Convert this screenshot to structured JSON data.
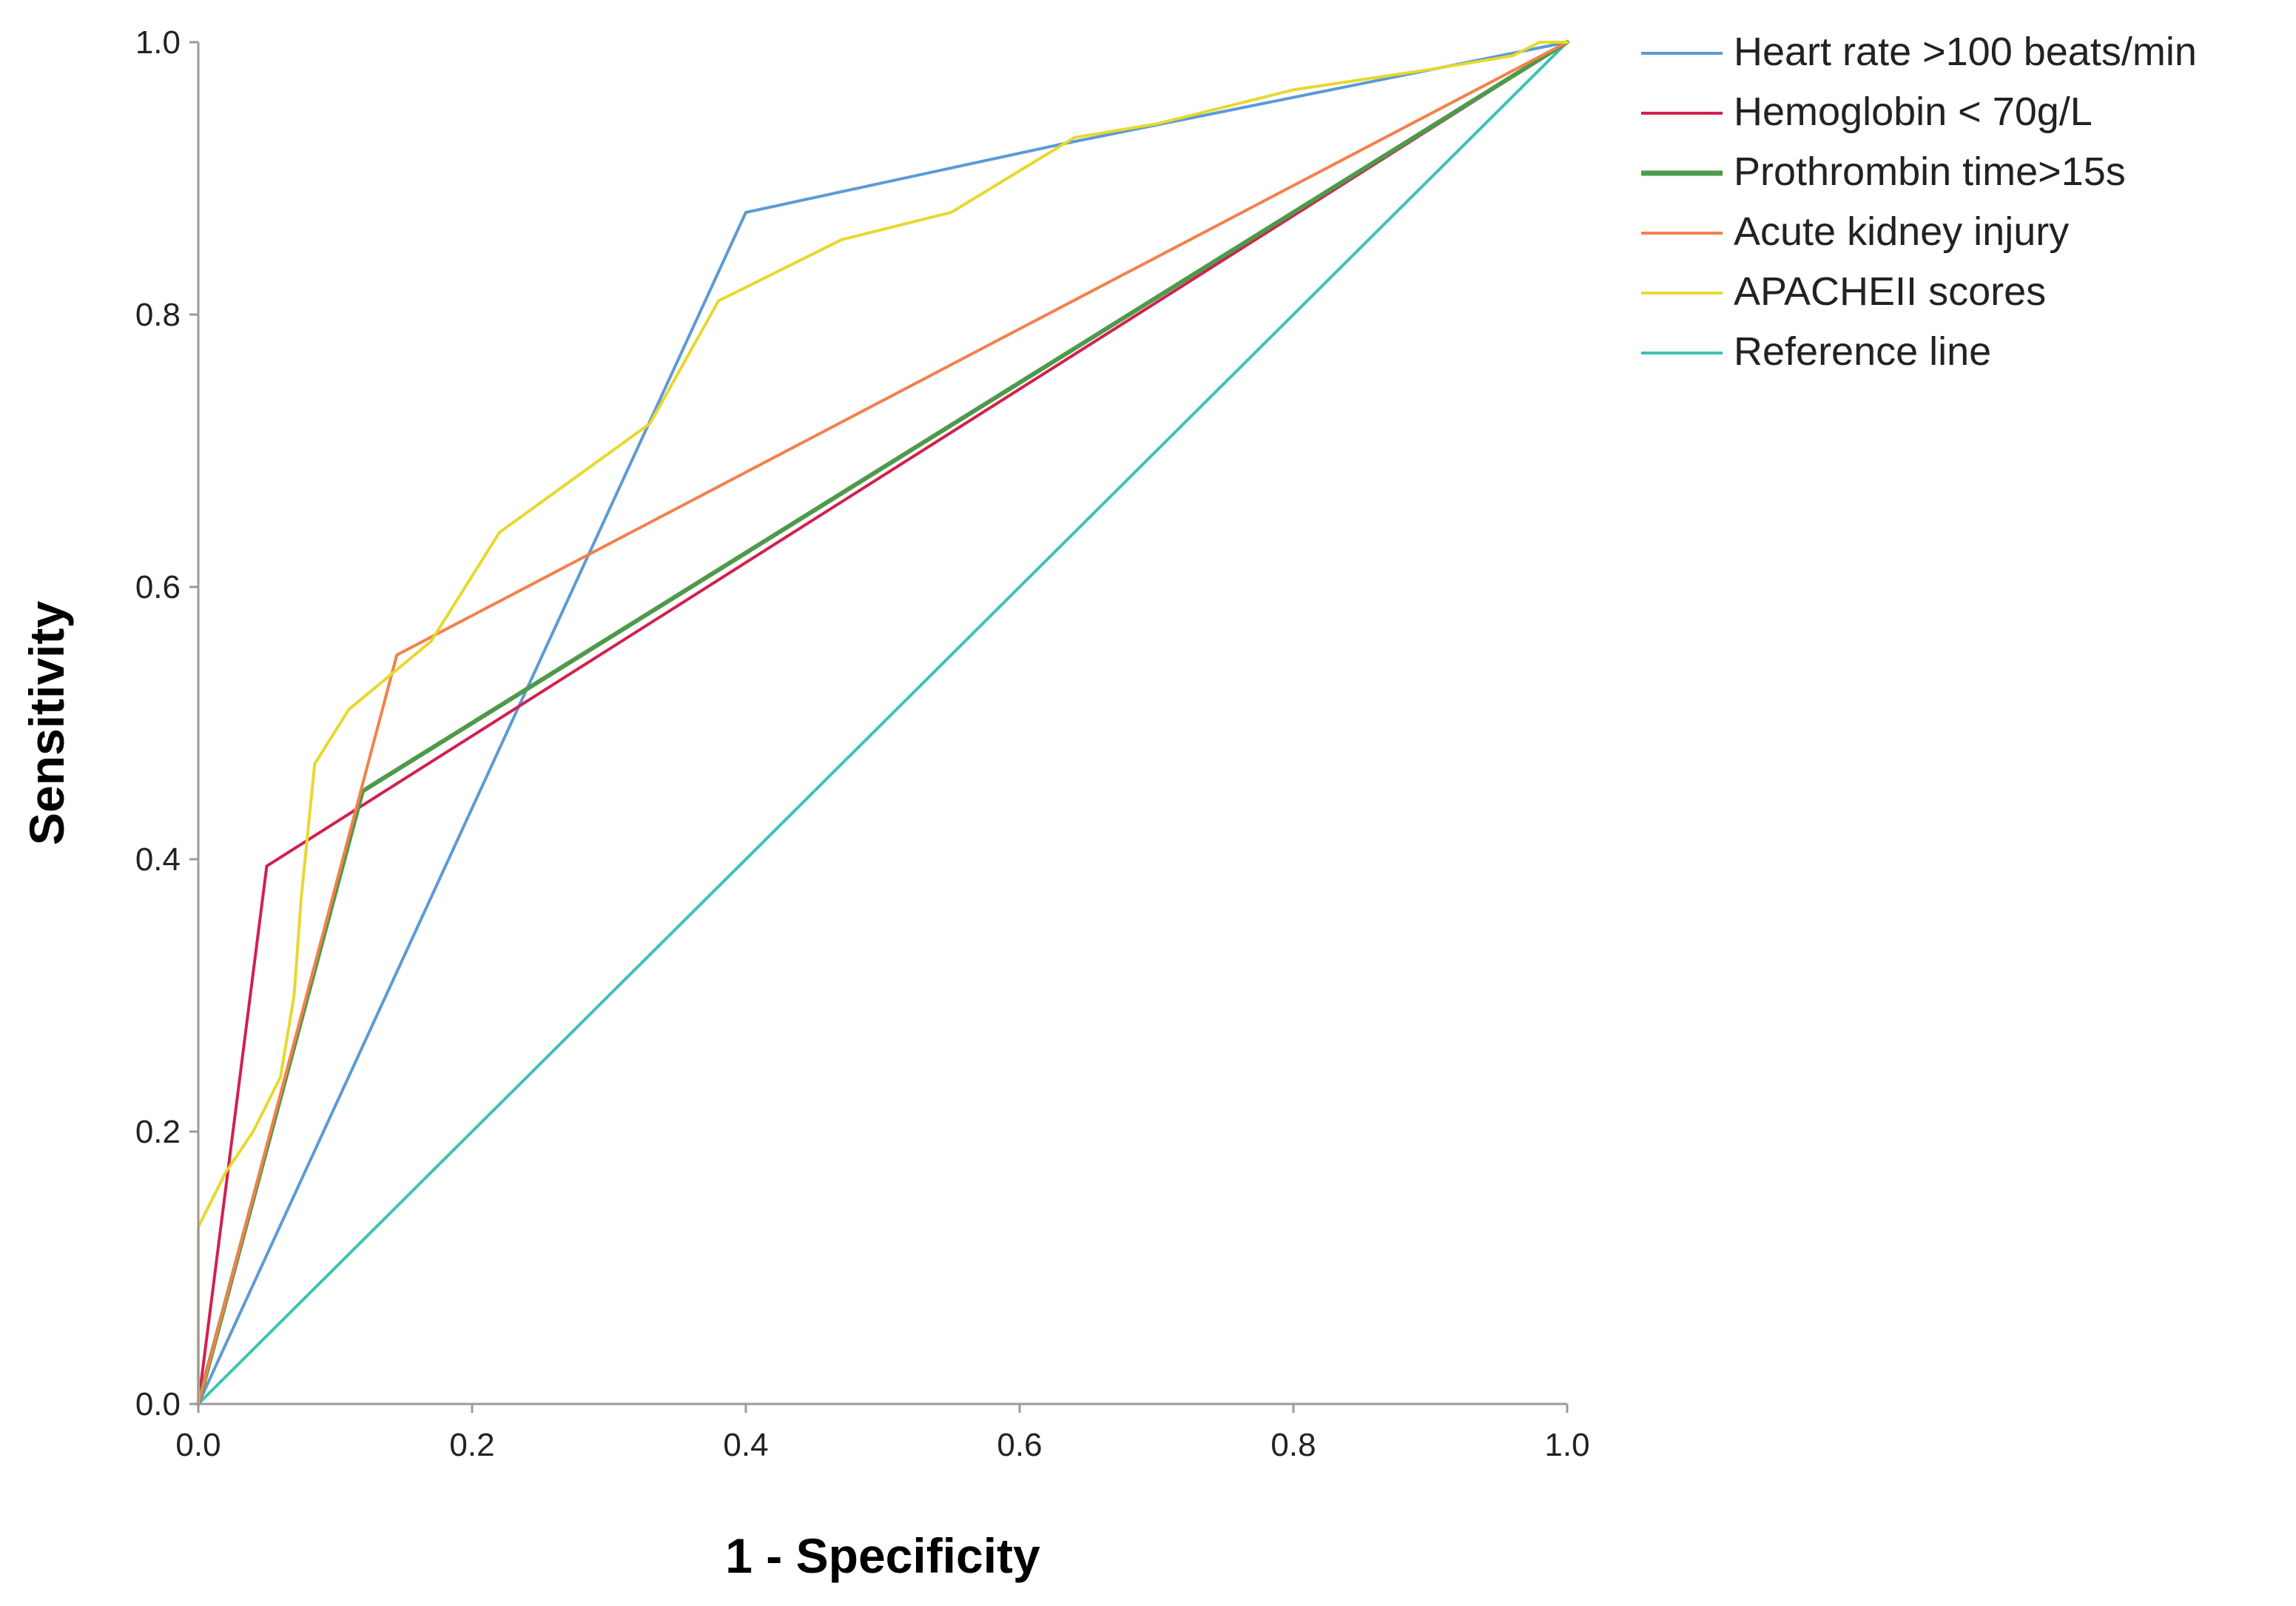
{
  "chart_data": {
    "type": "line",
    "title": "",
    "xlabel": "1 - Specificity",
    "ylabel": "Sensitivity",
    "xlim": [
      0,
      1
    ],
    "ylim": [
      0,
      1
    ],
    "xticks": [
      "0.0",
      "0.2",
      "0.4",
      "0.6",
      "0.8",
      "1.0"
    ],
    "yticks": [
      "0.0",
      "0.2",
      "0.4",
      "0.6",
      "0.8",
      "1.0"
    ],
    "grid": false,
    "legend_position": "top-right",
    "series": [
      {
        "name": "Heart rate >100 beats/min",
        "color": "#5b9bd5",
        "points": [
          [
            0,
            0
          ],
          [
            0.4,
            0.875
          ],
          [
            0.63,
            0.925
          ],
          [
            1,
            1
          ]
        ]
      },
      {
        "name": "Hemoglobin < 70g/L",
        "color": "#d2204e",
        "points": [
          [
            0,
            0
          ],
          [
            0.05,
            0.395
          ],
          [
            1,
            1
          ]
        ]
      },
      {
        "name": "Prothrombin time>15s",
        "color": "#4e9a4a",
        "points": [
          [
            0,
            0
          ],
          [
            0.12,
            0.45
          ],
          [
            1,
            1
          ]
        ]
      },
      {
        "name": "Acute kidney injury",
        "color": "#f4804a",
        "points": [
          [
            0,
            0
          ],
          [
            0.145,
            0.55
          ],
          [
            1,
            1
          ]
        ]
      },
      {
        "name": "APACHEII scores",
        "color": "#e6d92e",
        "points": [
          [
            0,
            0
          ],
          [
            0,
            0.13
          ],
          [
            0.02,
            0.17
          ],
          [
            0.04,
            0.2
          ],
          [
            0.06,
            0.24
          ],
          [
            0.07,
            0.3
          ],
          [
            0.075,
            0.37
          ],
          [
            0.085,
            0.47
          ],
          [
            0.11,
            0.51
          ],
          [
            0.17,
            0.56
          ],
          [
            0.22,
            0.64
          ],
          [
            0.33,
            0.72
          ],
          [
            0.38,
            0.81
          ],
          [
            0.47,
            0.855
          ],
          [
            0.55,
            0.875
          ],
          [
            0.64,
            0.93
          ],
          [
            0.7,
            0.94
          ],
          [
            0.8,
            0.965
          ],
          [
            0.9,
            0.98
          ],
          [
            0.96,
            0.99
          ],
          [
            0.98,
            1.0
          ],
          [
            1,
            1
          ]
        ]
      },
      {
        "name": "Reference line",
        "color": "#3cc2b5",
        "points": [
          [
            0,
            0
          ],
          [
            1,
            1
          ]
        ]
      }
    ]
  }
}
